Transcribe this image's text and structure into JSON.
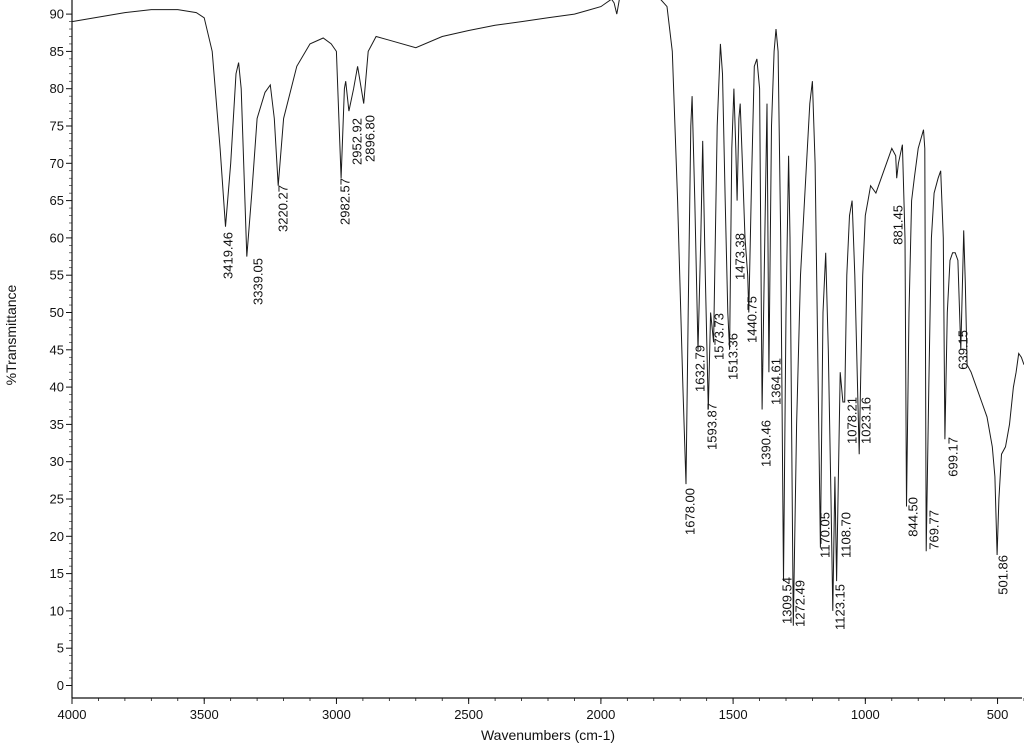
{
  "chart_data": {
    "type": "line",
    "title": "",
    "xlabel": "Wavenumbers (cm-1)",
    "ylabel": "%Transmittance",
    "xlim": [
      4000,
      400
    ],
    "ylim": [
      -2,
      92
    ],
    "x_reversed": true,
    "grid": false,
    "line_color": "#1a1a1a",
    "x_ticks": [
      4000,
      3500,
      3000,
      2500,
      2000,
      1500,
      1000,
      500
    ],
    "y_ticks": [
      0,
      5,
      10,
      15,
      20,
      25,
      30,
      35,
      40,
      45,
      50,
      55,
      60,
      65,
      70,
      75,
      80,
      85,
      90
    ],
    "series": [
      {
        "points": [
          [
            4000,
            89
          ],
          [
            3900,
            89.6
          ],
          [
            3800,
            90.2
          ],
          [
            3700,
            90.6
          ],
          [
            3600,
            90.6
          ],
          [
            3530,
            90.2
          ],
          [
            3500,
            89.5
          ],
          [
            3470,
            85
          ],
          [
            3440,
            72
          ],
          [
            3419.46,
            61.5
          ],
          [
            3400,
            70
          ],
          [
            3380,
            82
          ],
          [
            3370,
            83.5
          ],
          [
            3360,
            80
          ],
          [
            3339.05,
            57.5
          ],
          [
            3320,
            66
          ],
          [
            3300,
            76
          ],
          [
            3270,
            79.5
          ],
          [
            3250,
            80.5
          ],
          [
            3235,
            76
          ],
          [
            3220.27,
            67
          ],
          [
            3200,
            76
          ],
          [
            3150,
            83
          ],
          [
            3100,
            86
          ],
          [
            3050,
            86.8
          ],
          [
            3020,
            86
          ],
          [
            3000,
            85
          ],
          [
            2982.57,
            68
          ],
          [
            2970,
            80
          ],
          [
            2965,
            81
          ],
          [
            2952.92,
            77
          ],
          [
            2935,
            80
          ],
          [
            2920,
            83
          ],
          [
            2896.8,
            78
          ],
          [
            2880,
            85
          ],
          [
            2850,
            87
          ],
          [
            2800,
            86.5
          ],
          [
            2700,
            85.5
          ],
          [
            2600,
            87
          ],
          [
            2500,
            87.8
          ],
          [
            2400,
            88.5
          ],
          [
            2300,
            89
          ],
          [
            2200,
            89.5
          ],
          [
            2100,
            90
          ],
          [
            2050,
            90.5
          ],
          [
            2000,
            91
          ],
          [
            1980,
            91.5
          ],
          [
            1960,
            92
          ],
          [
            1950,
            91.5
          ],
          [
            1940,
            90
          ],
          [
            1930,
            92
          ],
          [
            1900,
            93
          ],
          [
            1800,
            93
          ],
          [
            1750,
            91
          ],
          [
            1730,
            85
          ],
          [
            1710,
            65
          ],
          [
            1690,
            40
          ],
          [
            1678.0,
            27
          ],
          [
            1670,
            50
          ],
          [
            1660,
            75
          ],
          [
            1655,
            79
          ],
          [
            1645,
            65
          ],
          [
            1632.79,
            45
          ],
          [
            1622,
            60
          ],
          [
            1615,
            73
          ],
          [
            1605,
            55
          ],
          [
            1593.87,
            37
          ],
          [
            1585,
            50
          ],
          [
            1573.73,
            46
          ],
          [
            1560,
            75
          ],
          [
            1548,
            86
          ],
          [
            1540,
            82
          ],
          [
            1530,
            65
          ],
          [
            1520,
            50
          ],
          [
            1513.36,
            45
          ],
          [
            1505,
            72
          ],
          [
            1497,
            80
          ],
          [
            1490,
            72
          ],
          [
            1485,
            65
          ],
          [
            1478,
            76
          ],
          [
            1473.38,
            78
          ],
          [
            1465,
            70
          ],
          [
            1455,
            60
          ],
          [
            1445,
            55
          ],
          [
            1440.75,
            50
          ],
          [
            1430,
            68
          ],
          [
            1420,
            83
          ],
          [
            1410,
            84
          ],
          [
            1400,
            80
          ],
          [
            1390.46,
            37
          ],
          [
            1380,
            60
          ],
          [
            1372,
            78
          ],
          [
            1364.61,
            42
          ],
          [
            1355,
            75
          ],
          [
            1345,
            85
          ],
          [
            1338,
            88
          ],
          [
            1330,
            85
          ],
          [
            1320,
            60
          ],
          [
            1309.54,
            14
          ],
          [
            1300,
            50
          ],
          [
            1290,
            71
          ],
          [
            1285,
            60
          ],
          [
            1272.49,
            8
          ],
          [
            1260,
            35
          ],
          [
            1245,
            55
          ],
          [
            1230,
            65
          ],
          [
            1210,
            78
          ],
          [
            1200,
            81
          ],
          [
            1190,
            70
          ],
          [
            1180,
            45
          ],
          [
            1170.05,
            18.5
          ],
          [
            1160,
            50
          ],
          [
            1150,
            58
          ],
          [
            1140,
            45
          ],
          [
            1130,
            25
          ],
          [
            1123.15,
            10
          ],
          [
            1115,
            28
          ],
          [
            1108.7,
            14
          ],
          [
            1095,
            42
          ],
          [
            1085,
            38
          ],
          [
            1078.21,
            38
          ],
          [
            1070,
            55
          ],
          [
            1060,
            63
          ],
          [
            1050,
            65
          ],
          [
            1040,
            55
          ],
          [
            1023.16,
            31
          ],
          [
            1010,
            55
          ],
          [
            1000,
            63
          ],
          [
            990,
            65
          ],
          [
            980,
            67
          ],
          [
            960,
            66
          ],
          [
            940,
            68
          ],
          [
            920,
            70
          ],
          [
            900,
            72
          ],
          [
            885,
            71
          ],
          [
            881.45,
            68
          ],
          [
            875,
            70
          ],
          [
            860,
            72.5
          ],
          [
            850,
            60
          ],
          [
            844.5,
            24
          ],
          [
            835,
            50
          ],
          [
            825,
            65
          ],
          [
            815,
            68
          ],
          [
            800,
            72
          ],
          [
            780,
            74.5
          ],
          [
            775,
            72
          ],
          [
            769.77,
            18
          ],
          [
            760,
            40
          ],
          [
            750,
            60
          ],
          [
            740,
            66
          ],
          [
            725,
            68
          ],
          [
            715,
            69
          ],
          [
            705,
            60
          ],
          [
            699.17,
            33
          ],
          [
            690,
            50
          ],
          [
            680,
            57
          ],
          [
            670,
            58
          ],
          [
            660,
            58
          ],
          [
            650,
            57
          ],
          [
            639.15,
            45
          ],
          [
            630,
            58
          ],
          [
            628,
            61
          ],
          [
            622,
            54
          ],
          [
            615,
            43
          ],
          [
            600,
            42
          ],
          [
            580,
            40
          ],
          [
            560,
            38
          ],
          [
            540,
            36
          ],
          [
            520,
            32
          ],
          [
            510,
            28
          ],
          [
            501.86,
            17.5
          ],
          [
            495,
            25
          ],
          [
            485,
            31
          ],
          [
            470,
            32
          ],
          [
            455,
            35
          ],
          [
            440,
            40
          ],
          [
            430,
            42
          ],
          [
            420,
            44.5
          ],
          [
            410,
            44
          ],
          [
            400,
            43
          ]
        ]
      }
    ],
    "peaks": [
      {
        "x": 3419.46,
        "label": "3419.46"
      },
      {
        "x": 3339.05,
        "label": "3339.05"
      },
      {
        "x": 3220.27,
        "label": "3220.27"
      },
      {
        "x": 2982.57,
        "label": "2982.57"
      },
      {
        "x": 2952.92,
        "label": "2952.92"
      },
      {
        "x": 2896.8,
        "label": "2896.80"
      },
      {
        "x": 1678.0,
        "label": "1678.00"
      },
      {
        "x": 1632.79,
        "label": "1632.79"
      },
      {
        "x": 1593.87,
        "label": "1593.87"
      },
      {
        "x": 1573.73,
        "label": "1573.73"
      },
      {
        "x": 1513.36,
        "label": "1513.36"
      },
      {
        "x": 1473.38,
        "label": "1473.38"
      },
      {
        "x": 1440.75,
        "label": "1440.75"
      },
      {
        "x": 1390.46,
        "label": "1390.46"
      },
      {
        "x": 1364.61,
        "label": "1364.61"
      },
      {
        "x": 1309.54,
        "label": "1309.54"
      },
      {
        "x": 1272.49,
        "label": "1272.49"
      },
      {
        "x": 1170.05,
        "label": "1170.05"
      },
      {
        "x": 1123.15,
        "label": "1123.15"
      },
      {
        "x": 1108.7,
        "label": "1108.70"
      },
      {
        "x": 1078.21,
        "label": "1078.21"
      },
      {
        "x": 1023.16,
        "label": "1023.16"
      },
      {
        "x": 881.45,
        "label": "881.45"
      },
      {
        "x": 844.5,
        "label": "844.50"
      },
      {
        "x": 769.77,
        "label": "769.77"
      },
      {
        "x": 699.17,
        "label": "699.17"
      },
      {
        "x": 639.15,
        "label": "639.15"
      },
      {
        "x": 501.86,
        "label": "501.86"
      }
    ]
  }
}
